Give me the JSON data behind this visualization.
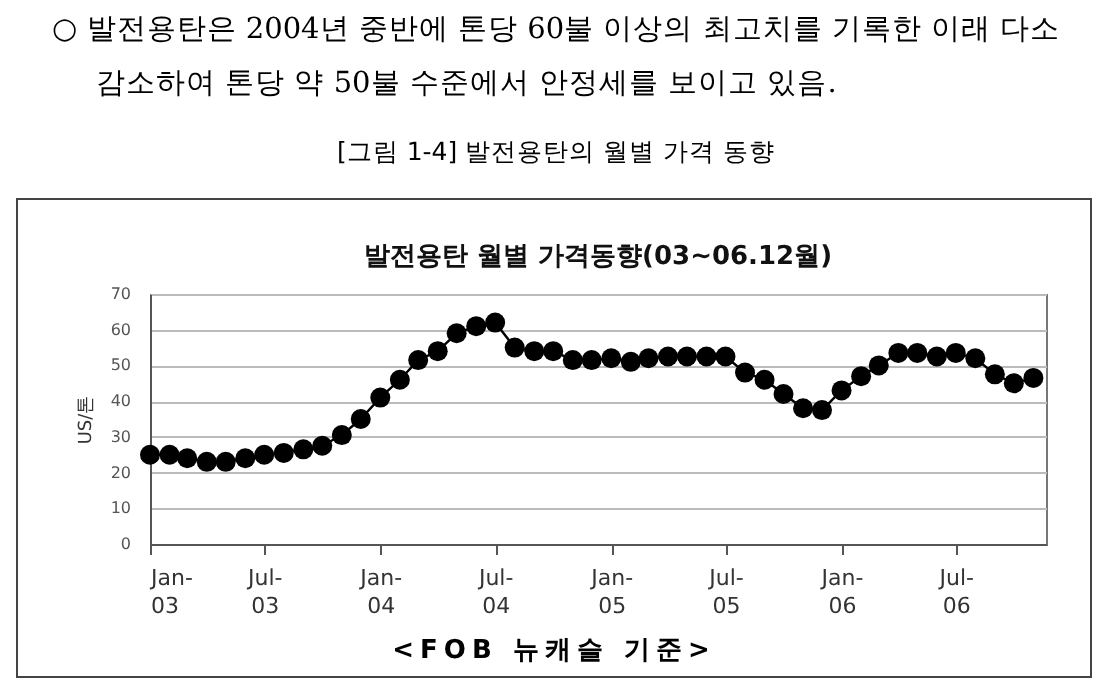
{
  "chart_data": {
    "type": "line",
    "title": "발전용탄 월별 가격동향(03~06.12월)",
    "ylabel": "US/톤",
    "annotations": [
      "○ 발전용탄은 2004년 중반에 톤당 60불 이상의 최고치를 기록한 이래 다소 감소하여 톤당 약 50불 수준에서 안정세를 보이고 있음.",
      "[그림 1-4] 발전용탄의 월별 가격 동향",
      "<FOB 뉴캐슬 기준>"
    ],
    "x": [
      "2003-01",
      "2003-02",
      "2003-03",
      "2003-04",
      "2003-05",
      "2003-06",
      "2003-07",
      "2003-08",
      "2003-09",
      "2003-10",
      "2003-11",
      "2003-12",
      "2004-01",
      "2004-02",
      "2004-03",
      "2004-04",
      "2004-05",
      "2004-06",
      "2004-07",
      "2004-08",
      "2004-09",
      "2004-10",
      "2004-11",
      "2004-12",
      "2005-01",
      "2005-02",
      "2005-03",
      "2005-04",
      "2005-05",
      "2005-06",
      "2005-07",
      "2005-08",
      "2005-09",
      "2005-10",
      "2005-11",
      "2005-12",
      "2006-01",
      "2006-02",
      "2006-03",
      "2006-04",
      "2006-05",
      "2006-06",
      "2006-07",
      "2006-08",
      "2006-09",
      "2006-10",
      "2006-11"
    ],
    "series": [
      {
        "color": "#000000",
        "values": [
          25,
          25,
          24,
          23,
          23,
          24,
          25,
          25.5,
          26.5,
          27.5,
          30.5,
          35,
          41,
          46,
          51.5,
          54,
          59,
          61,
          62,
          55,
          54,
          54,
          51.5,
          51.5,
          52,
          51,
          52,
          52.5,
          52.5,
          52.5,
          52.5,
          48,
          46,
          42,
          38,
          37.5,
          43,
          47,
          50,
          53.5,
          53.5,
          52.5,
          53.5,
          52,
          47.5,
          45,
          46.5
        ]
      }
    ],
    "xlim": [
      "2003-01",
      "2006-11-21"
    ],
    "xticks": [
      {
        "value": "2003-01",
        "label": "Jan-03"
      },
      {
        "value": "2003-07",
        "label": "Jul-03"
      },
      {
        "value": "2004-01",
        "label": "Jan-04"
      },
      {
        "value": "2004-07",
        "label": "Jul-04"
      },
      {
        "value": "2005-01",
        "label": "Jan-05"
      },
      {
        "value": "2005-07",
        "label": "Jul-05"
      },
      {
        "value": "2006-01",
        "label": "Jan-06"
      },
      {
        "value": "2006-07",
        "label": "Jul-06"
      }
    ],
    "ylim": [
      0,
      70
    ],
    "yticks": [
      0,
      10,
      20,
      30,
      40,
      50,
      60,
      70
    ],
    "grid": "y",
    "marker": "circle",
    "line_style": "solid"
  }
}
